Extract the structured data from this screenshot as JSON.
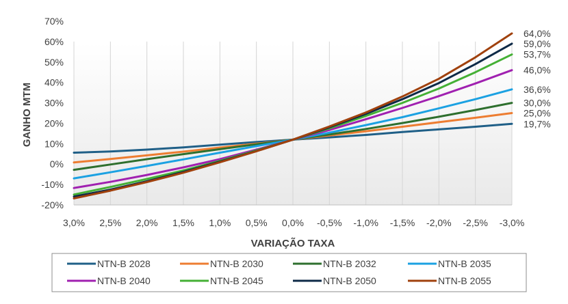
{
  "chart_data": {
    "type": "line",
    "xlabel": "VARIAÇÃO TAXA",
    "ylabel": "GANHO MTM",
    "x": [
      3.0,
      2.5,
      2.0,
      1.5,
      1.0,
      0.5,
      0.0,
      -0.5,
      -1.0,
      -1.5,
      -2.0,
      -2.5,
      -3.0
    ],
    "x_tick_labels": [
      "3,0%",
      "2,5%",
      "2,0%",
      "1,5%",
      "1,0%",
      "0,5%",
      "0,0%",
      "-0,5%",
      "-1,0%",
      "-1,5%",
      "-2,0%",
      "-2,5%",
      "-3,0%"
    ],
    "ylim": [
      -20,
      70
    ],
    "y_ticks": [
      -20,
      -10,
      0,
      10,
      20,
      30,
      40,
      50,
      60,
      70
    ],
    "y_tick_labels": [
      "-20%",
      "-10%",
      "0%",
      "10%",
      "20%",
      "30%",
      "40%",
      "50%",
      "60%",
      "70%"
    ],
    "grid": "vertical",
    "legend_position": "bottom",
    "series": [
      {
        "name": "NTN-B 2028",
        "color": "#1f5f87",
        "end_label": "19,7%",
        "values": [
          5.6,
          6.2,
          7.1,
          8.2,
          9.5,
          10.8,
          12.0,
          13.1,
          14.3,
          15.7,
          17.0,
          18.3,
          19.7
        ]
      },
      {
        "name": "NTN-B 2030",
        "color": "#ed7d31",
        "end_label": "25,0%",
        "values": [
          0.8,
          2.5,
          4.3,
          6.1,
          8.1,
          10.0,
          12.0,
          14.0,
          16.1,
          18.3,
          20.5,
          22.7,
          25.0
        ]
      },
      {
        "name": "NTN-B 2032",
        "color": "#2e6f2e",
        "end_label": "30,0%",
        "values": [
          -2.8,
          -0.2,
          2.4,
          4.9,
          7.3,
          9.7,
          12.0,
          14.5,
          17.2,
          20.1,
          23.2,
          26.5,
          30.0
        ]
      },
      {
        "name": "NTN-B 2035",
        "color": "#1ba1e2",
        "end_label": "36,6%",
        "values": [
          -7.0,
          -4.0,
          -0.9,
          2.3,
          5.6,
          8.8,
          12.0,
          15.4,
          19.1,
          23.0,
          27.3,
          31.8,
          36.6
        ]
      },
      {
        "name": "NTN-B 2040",
        "color": "#a020b0",
        "end_label": "46,0%",
        "values": [
          -11.7,
          -8.7,
          -5.3,
          -1.6,
          2.4,
          7.1,
          12.0,
          16.7,
          22.0,
          27.5,
          33.3,
          39.5,
          46.0
        ]
      },
      {
        "name": "NTN-B 2045",
        "color": "#44b035",
        "end_label": "53,7%",
        "values": [
          -14.9,
          -11.2,
          -7.3,
          -3.1,
          1.6,
          6.7,
          12.0,
          17.5,
          23.6,
          30.0,
          37.0,
          45.0,
          53.7
        ]
      },
      {
        "name": "NTN-B 2050",
        "color": "#0e2a47",
        "end_label": "59,0%",
        "values": [
          -15.9,
          -12.5,
          -8.4,
          -3.8,
          1.2,
          6.4,
          12.0,
          18.0,
          24.6,
          31.8,
          39.7,
          49.0,
          59.0
        ]
      },
      {
        "name": "NTN-B 2055",
        "color": "#a0410d",
        "end_label": "64,0%",
        "values": [
          -16.8,
          -13.0,
          -8.8,
          -4.2,
          0.9,
          6.3,
          12.0,
          18.4,
          25.3,
          33.1,
          41.8,
          52.3,
          64.0
        ]
      }
    ]
  }
}
